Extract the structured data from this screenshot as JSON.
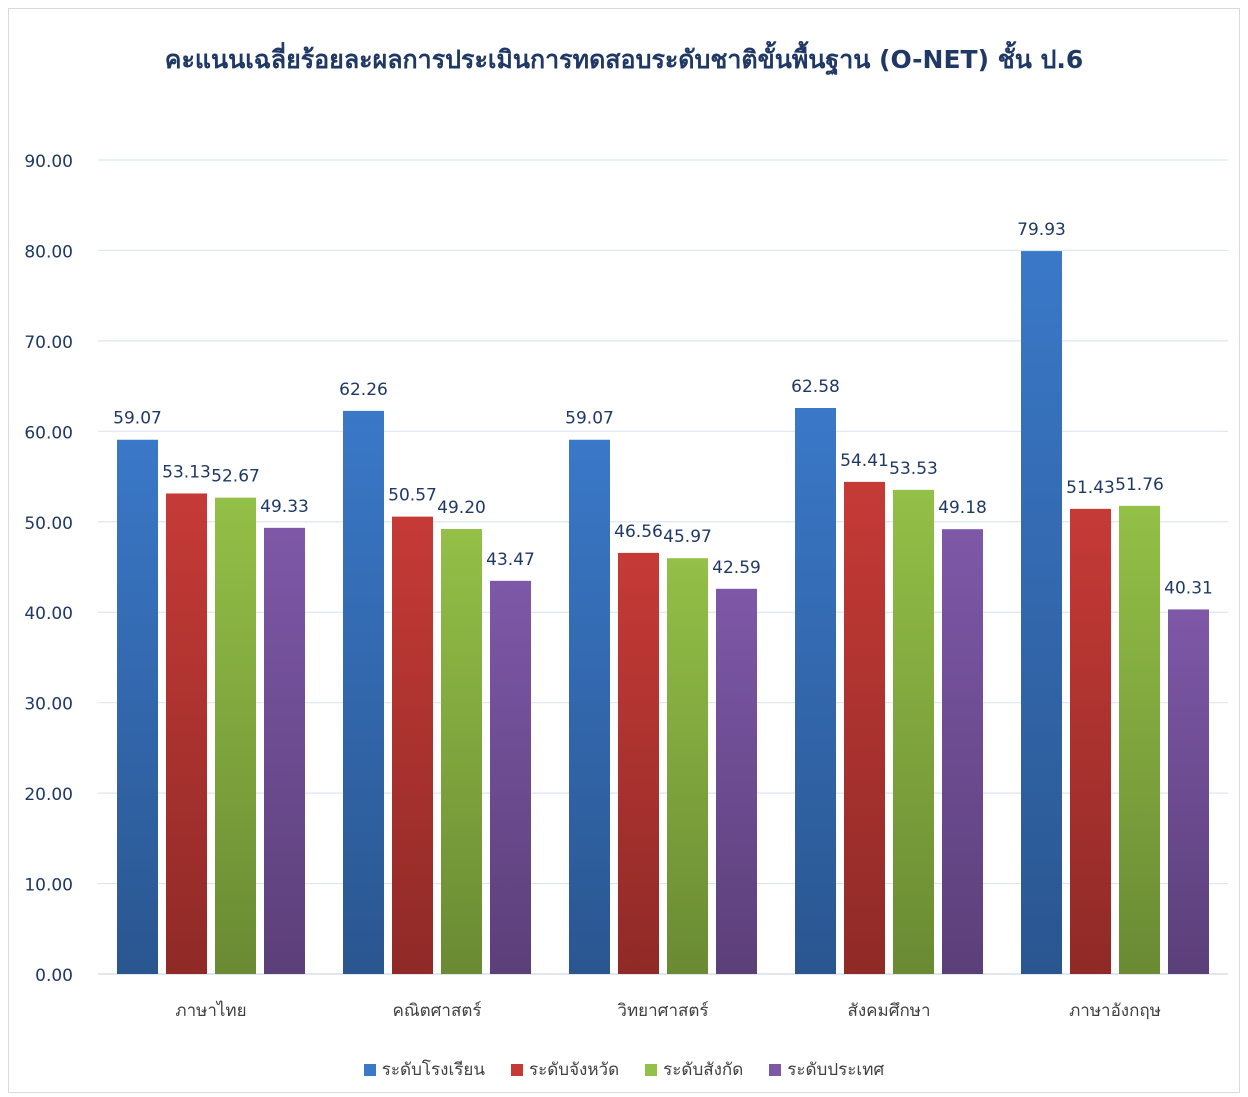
{
  "chart_data": {
    "type": "bar",
    "title": "คะแนนเฉลี่ยร้อยละผลการประเมินการทดสอบระดับชาติขั้นพื้นฐาน (O-NET) ชั้น ป.6",
    "categories": [
      "ภาษาไทย",
      "คณิตศาสตร์",
      "วิทยาศาสตร์",
      "สังคมศึกษา",
      "ภาษาอังกฤษ"
    ],
    "series": [
      {
        "name": "ระดับโรงเรียน",
        "color": "#3a78c8",
        "values": [
          59.07,
          62.26,
          59.07,
          62.58,
          79.93
        ]
      },
      {
        "name": "ระดับจังหวัด",
        "color": "#c63a36",
        "values": [
          53.13,
          50.57,
          46.56,
          54.41,
          51.43
        ]
      },
      {
        "name": "ระดับสังกัด",
        "color": "#93c047",
        "values": [
          52.67,
          49.2,
          45.97,
          53.53,
          51.76
        ]
      },
      {
        "name": "ระดับประเทศ",
        "color": "#7e58a8",
        "values": [
          49.33,
          43.47,
          42.59,
          49.18,
          40.31
        ]
      }
    ],
    "ylim": [
      0,
      90
    ],
    "yticks": [
      "0.00",
      "10.00",
      "20.00",
      "30.00",
      "40.00",
      "50.00",
      "60.00",
      "70.00",
      "80.00",
      "90.00"
    ],
    "grid": true,
    "legend": "bottom"
  }
}
